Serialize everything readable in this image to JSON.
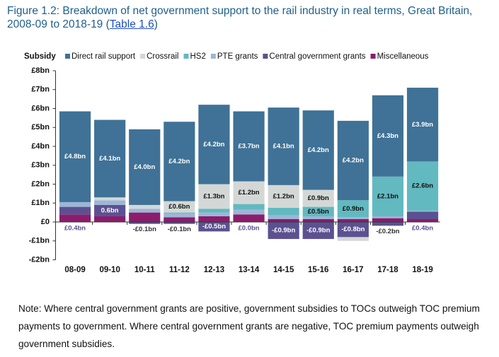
{
  "chart_data": {
    "type": "stacked-bar",
    "title": "Figure 1.2: Breakdown of net government support to the rail industry in real terms, Great Britain, 2008-09 to 2018-19 (",
    "title_link": "Table 1.6",
    "title_end": ")",
    "ylabel": "Subsidy",
    "note": "Note: Where central government grants are positive, government subsidies to TOCs outweigh TOC premium payments to government. Where central government grants are negative, TOC premium payments outweigh government subsidies.",
    "categories": [
      "08-09",
      "09-10",
      "10-11",
      "11-12",
      "12-13",
      "13-14",
      "14-15",
      "15-16",
      "16-17",
      "17-18",
      "18-19"
    ],
    "series": [
      {
        "name": "Direct rail support",
        "color": "#3f7296",
        "label_color": "#ffffff",
        "values": [
          4.8,
          4.1,
          4.0,
          4.2,
          4.2,
          3.7,
          4.1,
          4.2,
          4.2,
          4.3,
          3.9
        ],
        "value_labels": [
          "£4.8bn",
          "£4.1bn",
          "£4.0bn",
          "£4.2bn",
          "£4.2bn",
          "£3.7bn",
          "£4.1bn",
          "£4.2bn",
          "£4.2bn",
          "£4.3bn",
          "£3.9bn"
        ]
      },
      {
        "name": "Crossrail",
        "color": "#d3d8d6",
        "label_color": "#111111",
        "values": [
          0,
          0.15,
          0.2,
          0.6,
          1.3,
          1.2,
          1.2,
          0.9,
          -0.2,
          0,
          0
        ],
        "value_labels": [
          null,
          null,
          null,
          "£0.6bn",
          "£1.3bn",
          "£1.2bn",
          "£1.2bn",
          "£0.9bn",
          null,
          null,
          null
        ]
      },
      {
        "name": "HS2",
        "color": "#62b9c0",
        "label_color": "#111111",
        "values": [
          0,
          0,
          0,
          0.05,
          0.2,
          0.3,
          0.4,
          0.5,
          0.9,
          2.1,
          2.6
        ],
        "value_labels": [
          null,
          null,
          null,
          null,
          null,
          null,
          null,
          "£0.5bn",
          "£0.9bn",
          "£2.1bn",
          "£2.6bn"
        ]
      },
      {
        "name": "PTE grants",
        "color": "#9db6d6",
        "label_color": "#111111",
        "values": [
          0.25,
          0.25,
          0.2,
          0.2,
          0.2,
          0.25,
          0.2,
          0.15,
          0.1,
          0.1,
          0.05
        ],
        "value_labels": [
          null,
          null,
          null,
          null,
          null,
          null,
          null,
          null,
          null,
          null,
          null
        ]
      },
      {
        "name": "Central government grants",
        "color": "#5c5190",
        "label_color": "#ffffff",
        "values": [
          0.4,
          0.6,
          -0.1,
          -0.1,
          -0.5,
          0.0,
          -0.9,
          -0.9,
          -0.8,
          -0.2,
          0.4
        ],
        "value_labels": [
          "£0.4bn",
          "0.6bn",
          "-£0.1bn",
          "-£0.1bn",
          "-£0.5bn",
          "£0.0bn",
          "-£0.9bn",
          "-£0.9bn",
          "-£0.8bn",
          "-£0.2bn",
          "£0.4bn"
        ]
      },
      {
        "name": "Miscellaneous",
        "color": "#8c1c6c",
        "label_color": "#ffffff",
        "values": [
          0.4,
          0.3,
          0.5,
          0.25,
          0.3,
          0.4,
          0.15,
          0.15,
          0.15,
          0.2,
          0.15
        ],
        "value_labels": [
          null,
          null,
          null,
          null,
          null,
          null,
          null,
          null,
          null,
          null,
          null
        ]
      }
    ],
    "ylim": [
      -2,
      8
    ],
    "yticks": [
      {
        "value": -2,
        "label": "-£2bn"
      },
      {
        "value": -1,
        "label": "-£1bn"
      },
      {
        "value": 0,
        "label": "£0"
      },
      {
        "value": 1,
        "label": "£1bn"
      },
      {
        "value": 2,
        "label": "£2bn"
      },
      {
        "value": 3,
        "label": "£3bn"
      },
      {
        "value": 4,
        "label": "£4bn"
      },
      {
        "value": 5,
        "label": "£5bn"
      },
      {
        "value": 6,
        "label": "£6bn"
      },
      {
        "value": 7,
        "label": "£7bn"
      },
      {
        "value": 8,
        "label": "£8bn"
      }
    ],
    "grid": false
  }
}
